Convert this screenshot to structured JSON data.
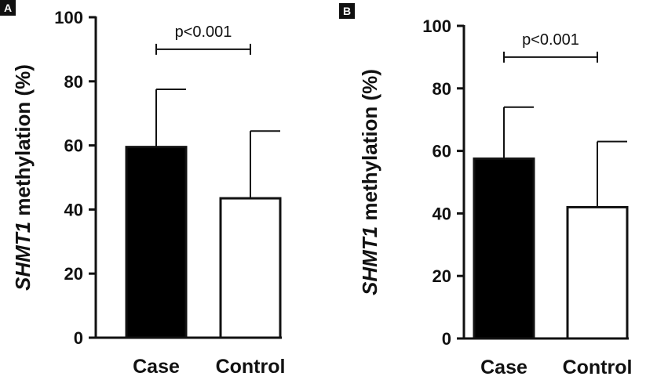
{
  "chart_data": [
    {
      "panel": "A",
      "type": "bar",
      "ylabel_italic": "SHMT1",
      "ylabel_rest": " methylation (%)",
      "ylim": [
        0,
        100
      ],
      "yticks": [
        0,
        20,
        40,
        60,
        80,
        100
      ],
      "categories": [
        "Case",
        "Control"
      ],
      "values": [
        59.5,
        43.5
      ],
      "errors": [
        18,
        21
      ],
      "fills": [
        "#000000",
        "#ffffff"
      ],
      "annotation": "p<0.001",
      "grid": false
    },
    {
      "panel": "B",
      "type": "bar",
      "ylabel_italic": "SHMT1",
      "ylabel_rest": " methylation (%)",
      "ylim": [
        0,
        100
      ],
      "yticks": [
        0,
        20,
        40,
        60,
        80,
        100
      ],
      "categories": [
        "Case",
        "Control"
      ],
      "values": [
        57.5,
        42
      ],
      "errors": [
        16.5,
        21
      ],
      "fills": [
        "#000000",
        "#ffffff"
      ],
      "annotation": "p<0.001",
      "grid": false
    }
  ]
}
